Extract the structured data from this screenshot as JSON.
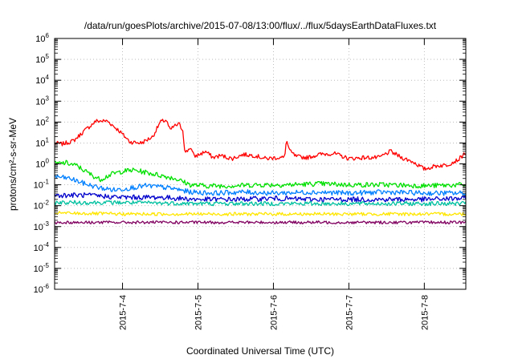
{
  "chart_data": {
    "type": "line",
    "title": "/data/run/goesPlots/archive/2015-07-08/13:00/flux/../flux/5daysEarthDataFluxes.txt",
    "xlabel": "Coordinated Universal Time (UTC)",
    "ylabel": "protons/cm²-s-sr-MeV",
    "yscale": "log",
    "ylim_exp": [
      -6,
      6
    ],
    "y_tick_labels": [
      {
        "base": "10",
        "exp": "-6"
      },
      {
        "base": "10",
        "exp": "-5"
      },
      {
        "base": "10",
        "exp": "-4"
      },
      {
        "base": "10",
        "exp": "-3"
      },
      {
        "base": "10",
        "exp": "-2"
      },
      {
        "base": "10",
        "exp": "-1"
      },
      {
        "base": "10",
        "exp": "0"
      },
      {
        "base": "10",
        "exp": "1"
      },
      {
        "base": "10",
        "exp": "2"
      },
      {
        "base": "10",
        "exp": "3"
      },
      {
        "base": "10",
        "exp": "4"
      },
      {
        "base": "10",
        "exp": "5"
      },
      {
        "base": "10",
        "exp": "6"
      }
    ],
    "xlim_days": [
      3.1,
      8.55
    ],
    "x_ticks": [
      {
        "day": 4,
        "label": "2015-7-4"
      },
      {
        "day": 5,
        "label": "2015-7-5"
      },
      {
        "day": 6,
        "label": "2015-7-6"
      },
      {
        "day": 7,
        "label": "2015-7-7"
      },
      {
        "day": 8,
        "label": "2015-7-8"
      }
    ],
    "grid": true,
    "series": [
      {
        "color": "#ff0000",
        "noise": 0.1,
        "points": [
          [
            3.1,
            1.0
          ],
          [
            3.2,
            0.95
          ],
          [
            3.35,
            1.1
          ],
          [
            3.5,
            1.6
          ],
          [
            3.65,
            2.05
          ],
          [
            3.8,
            2.05
          ],
          [
            3.95,
            1.6
          ],
          [
            4.1,
            1.05
          ],
          [
            4.25,
            1.0
          ],
          [
            4.4,
            1.3
          ],
          [
            4.5,
            2.0
          ],
          [
            4.58,
            2.1
          ],
          [
            4.63,
            1.6
          ],
          [
            4.68,
            1.8
          ],
          [
            4.75,
            1.9
          ],
          [
            4.8,
            1.6
          ],
          [
            4.83,
            0.5
          ],
          [
            4.9,
            0.8
          ],
          [
            4.95,
            0.35
          ],
          [
            5.05,
            0.5
          ],
          [
            5.1,
            0.6
          ],
          [
            5.2,
            0.3
          ],
          [
            5.3,
            0.4
          ],
          [
            5.45,
            0.25
          ],
          [
            5.6,
            0.45
          ],
          [
            5.75,
            0.4
          ],
          [
            5.9,
            0.25
          ],
          [
            6.05,
            0.3
          ],
          [
            6.15,
            0.3
          ],
          [
            6.17,
            1.15
          ],
          [
            6.22,
            0.6
          ],
          [
            6.3,
            0.35
          ],
          [
            6.45,
            0.3
          ],
          [
            6.6,
            0.45
          ],
          [
            6.8,
            0.5
          ],
          [
            7.0,
            0.25
          ],
          [
            7.2,
            0.3
          ],
          [
            7.4,
            0.3
          ],
          [
            7.55,
            0.6
          ],
          [
            7.7,
            0.3
          ],
          [
            7.85,
            0.1
          ],
          [
            8.0,
            -0.25
          ],
          [
            8.15,
            -0.1
          ],
          [
            8.3,
            -0.05
          ],
          [
            8.45,
            0.2
          ],
          [
            8.55,
            0.55
          ]
        ]
      },
      {
        "color": "#00e000",
        "noise": 0.12,
        "points": [
          [
            3.1,
            0.0
          ],
          [
            3.25,
            0.05
          ],
          [
            3.4,
            -0.1
          ],
          [
            3.55,
            -0.45
          ],
          [
            3.7,
            -0.75
          ],
          [
            3.85,
            -0.5
          ],
          [
            4.0,
            -0.35
          ],
          [
            4.15,
            -0.3
          ],
          [
            4.3,
            -0.4
          ],
          [
            4.5,
            -0.55
          ],
          [
            4.7,
            -0.7
          ],
          [
            4.9,
            -1.0
          ],
          [
            5.1,
            -1.05
          ],
          [
            5.4,
            -1.05
          ],
          [
            5.8,
            -1.0
          ],
          [
            6.2,
            -1.0
          ],
          [
            6.6,
            -0.95
          ],
          [
            7.0,
            -1.0
          ],
          [
            7.5,
            -1.0
          ],
          [
            8.0,
            -1.05
          ],
          [
            8.55,
            -1.0
          ]
        ]
      },
      {
        "color": "#0080ff",
        "noise": 0.12,
        "points": [
          [
            3.1,
            -0.6
          ],
          [
            3.3,
            -0.7
          ],
          [
            3.5,
            -0.95
          ],
          [
            3.7,
            -1.15
          ],
          [
            3.9,
            -1.25
          ],
          [
            4.1,
            -1.15
          ],
          [
            4.3,
            -1.05
          ],
          [
            4.5,
            -1.1
          ],
          [
            4.7,
            -1.2
          ],
          [
            4.9,
            -1.35
          ],
          [
            5.2,
            -1.4
          ],
          [
            5.6,
            -1.35
          ],
          [
            6.0,
            -1.4
          ],
          [
            6.5,
            -1.35
          ],
          [
            7.0,
            -1.4
          ],
          [
            7.5,
            -1.35
          ],
          [
            8.0,
            -1.4
          ],
          [
            8.55,
            -1.4
          ]
        ]
      },
      {
        "color": "#0000cc",
        "noise": 0.12,
        "points": [
          [
            3.1,
            -1.5
          ],
          [
            3.5,
            -1.5
          ],
          [
            4.0,
            -1.6
          ],
          [
            4.5,
            -1.6
          ],
          [
            5.0,
            -1.7
          ],
          [
            5.5,
            -1.7
          ],
          [
            6.0,
            -1.65
          ],
          [
            6.5,
            -1.7
          ],
          [
            7.0,
            -1.7
          ],
          [
            7.5,
            -1.7
          ],
          [
            8.0,
            -1.7
          ],
          [
            8.55,
            -1.65
          ]
        ]
      },
      {
        "color": "#00c0a0",
        "noise": 0.1,
        "points": [
          [
            3.1,
            -1.85
          ],
          [
            4.0,
            -1.85
          ],
          [
            5.0,
            -1.9
          ],
          [
            6.0,
            -1.9
          ],
          [
            7.0,
            -1.9
          ],
          [
            8.0,
            -1.9
          ],
          [
            8.55,
            -1.9
          ]
        ]
      },
      {
        "color": "#ffe600",
        "noise": 0.08,
        "points": [
          [
            3.1,
            -2.35
          ],
          [
            4.0,
            -2.4
          ],
          [
            5.0,
            -2.4
          ],
          [
            6.0,
            -2.4
          ],
          [
            7.0,
            -2.4
          ],
          [
            8.0,
            -2.4
          ],
          [
            8.55,
            -2.4
          ]
        ]
      },
      {
        "color": "#800060",
        "noise": 0.07,
        "points": [
          [
            3.1,
            -2.8
          ],
          [
            4.0,
            -2.8
          ],
          [
            5.0,
            -2.8
          ],
          [
            6.0,
            -2.8
          ],
          [
            7.0,
            -2.8
          ],
          [
            8.0,
            -2.8
          ],
          [
            8.55,
            -2.8
          ]
        ]
      }
    ]
  }
}
